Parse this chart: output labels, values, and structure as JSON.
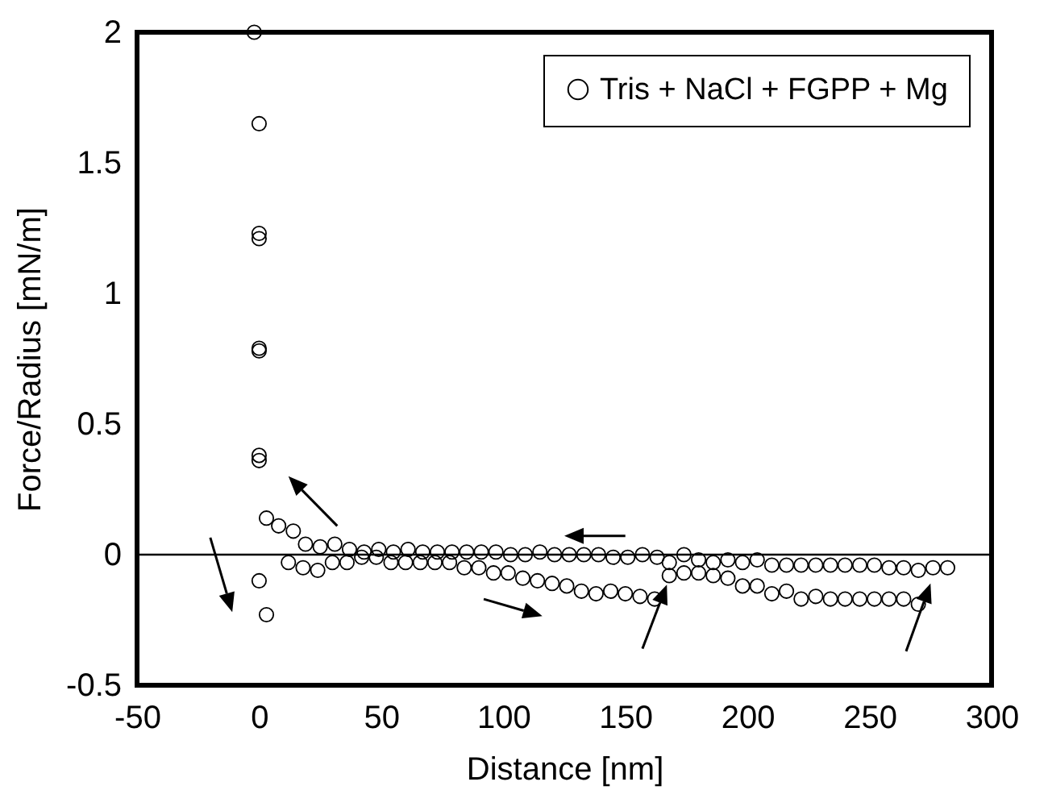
{
  "chart_data": {
    "type": "scatter",
    "xlabel": "Distance [nm]",
    "ylabel": "Force/Radius [mN/m]",
    "xlim": [
      -50,
      300
    ],
    "xticks": [
      -50,
      0,
      50,
      100,
      150,
      200,
      250,
      300
    ],
    "ylim": [
      -0.5,
      2
    ],
    "yticks": [
      -0.5,
      0,
      0.5,
      1,
      1.5,
      2
    ],
    "grid": false,
    "legend": "top right",
    "marker": "circle",
    "ref_lines": [
      {
        "axis": "y",
        "value": 0,
        "color": "#000000"
      }
    ],
    "series": [
      {
        "name": "Tris + NaCl + FGPP + Mg",
        "color": "#000000",
        "x": [
          -2,
          0,
          0,
          0,
          0,
          0,
          0,
          0,
          0,
          3,
          3,
          8,
          14,
          19,
          25,
          31,
          37,
          43,
          49,
          55,
          61,
          67,
          73,
          79,
          85,
          91,
          97,
          103,
          109,
          115,
          121,
          127,
          133,
          139,
          145,
          151,
          157,
          163,
          168,
          174,
          180,
          186,
          192,
          198,
          204,
          210,
          216,
          222,
          228,
          234,
          240,
          246,
          252,
          258,
          264,
          270,
          276,
          282,
          12,
          18,
          24,
          30,
          36,
          42,
          48,
          54,
          60,
          66,
          72,
          78,
          84,
          90,
          96,
          102,
          108,
          114,
          120,
          126,
          132,
          138,
          144,
          150,
          156,
          162,
          168,
          174,
          180,
          186,
          192,
          198,
          204,
          210,
          216,
          222,
          228,
          234,
          240,
          246,
          252,
          258,
          264,
          270
        ],
        "values": [
          2.0,
          1.65,
          1.23,
          1.21,
          0.79,
          0.78,
          0.38,
          0.36,
          -0.1,
          -0.23,
          0.14,
          0.11,
          0.09,
          0.04,
          0.03,
          0.04,
          0.02,
          0.01,
          0.02,
          0.01,
          0.02,
          0.01,
          0.01,
          0.01,
          0.01,
          0.01,
          0.01,
          0.0,
          0.0,
          0.01,
          0.0,
          0.0,
          0.0,
          0.0,
          -0.01,
          -0.01,
          0.0,
          -0.01,
          -0.03,
          0.0,
          -0.02,
          -0.03,
          -0.02,
          -0.03,
          -0.02,
          -0.04,
          -0.04,
          -0.04,
          -0.04,
          -0.04,
          -0.04,
          -0.04,
          -0.04,
          -0.05,
          -0.05,
          -0.06,
          -0.05,
          -0.05,
          -0.03,
          -0.05,
          -0.06,
          -0.03,
          -0.03,
          -0.01,
          -0.01,
          -0.03,
          -0.03,
          -0.03,
          -0.03,
          -0.03,
          -0.05,
          -0.05,
          -0.07,
          -0.07,
          -0.09,
          -0.1,
          -0.11,
          -0.12,
          -0.14,
          -0.15,
          -0.14,
          -0.15,
          -0.16,
          -0.17,
          -0.08,
          -0.07,
          -0.07,
          -0.08,
          -0.09,
          -0.12,
          -0.12,
          -0.15,
          -0.14,
          -0.17,
          -0.16,
          -0.17,
          -0.17,
          -0.17,
          -0.17,
          -0.17,
          -0.17,
          -0.19
        ]
      }
    ]
  }
}
